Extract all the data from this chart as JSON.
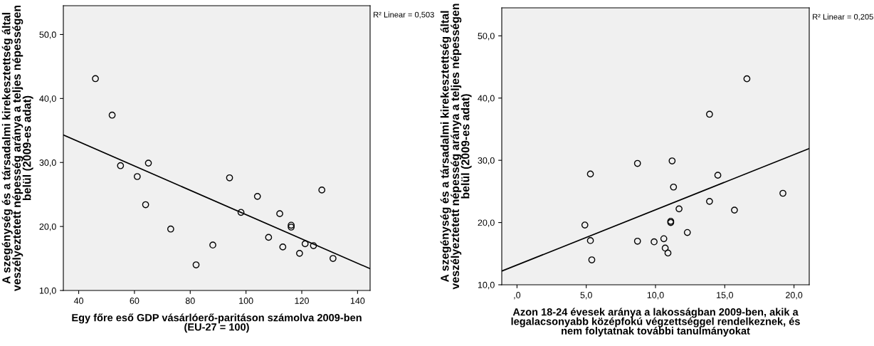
{
  "chart_data": [
    {
      "type": "scatter",
      "xlabel": "Egy főre eső GDP vásárlóerő-paritáson számolva 2009-ben\n(EU-27 = 100)",
      "ylabel": "A szegénység és a társadalmi kirekesztettség által\nveszélyeztetett népesség aránya a teljes népességen\nbelül (2009-es adat)",
      "annotations": [
        "R² Linear = 0,503"
      ],
      "xlim": [
        34.5,
        144.5
      ],
      "xticks": [
        40,
        60,
        80,
        100,
        120,
        140
      ],
      "ylim": [
        10,
        54.5
      ],
      "yticks": [
        {
          "value": 10,
          "label": "10,0"
        },
        {
          "value": 20,
          "label": "20,0"
        },
        {
          "value": 30,
          "label": "30,0"
        },
        {
          "value": 40,
          "label": "40,0"
        },
        {
          "value": 50,
          "label": "50,0"
        }
      ],
      "grid": false,
      "legend": false,
      "series": [
        {
          "marker": "circle",
          "color": "#000000",
          "x": [
            46.0,
            52.0,
            55.0,
            65.0,
            61.0,
            64.0,
            73.0,
            82.1,
            88.1,
            94.1,
            98.2,
            104.1,
            108.1,
            112.1,
            113.2,
            116.2,
            116.2,
            119.2,
            121.2,
            124.2,
            127.2,
            131.2
          ],
          "values": [
            43.1,
            37.4,
            29.5,
            29.9,
            27.8,
            23.4,
            19.6,
            14.0,
            17.1,
            27.6,
            22.2,
            24.7,
            18.3,
            22.0,
            16.8,
            20.2,
            19.9,
            15.8,
            17.3,
            17.0,
            25.7,
            15.0
          ]
        },
        {
          "type": "line",
          "marker": "none",
          "line_style": "solid",
          "color": "#000000",
          "x": [
            34.5,
            144.5
          ],
          "values": [
            34.3,
            13.4
          ]
        }
      ]
    },
    {
      "type": "scatter",
      "xlabel": "Azon 18-24 évesek aránya a lakosságban 2009-ben, akik a\nlegalacsonyabb középfokú végzettséggel rendelkeznek, és\nnem folytatnak további tanulmányokat",
      "ylabel": "A szegénység és a társadalmi kirekesztettség által\nveszélyeztetett népesség aránya a teljes népességen\nbelül (2009-es adat)",
      "annotations": [
        "R² Linear = 0,205"
      ],
      "xlim": [
        -1.1,
        21.1
      ],
      "xticks": [
        {
          "value": 0,
          "label": ",0"
        },
        {
          "value": 5,
          "label": "5,0"
        },
        {
          "value": 10,
          "label": "10,0"
        },
        {
          "value": 15,
          "label": "15,0"
        },
        {
          "value": 20,
          "label": "20,0"
        }
      ],
      "ylim": [
        10,
        54.5
      ],
      "yticks": [
        {
          "value": 10,
          "label": "10,0"
        },
        {
          "value": 20,
          "label": "20,0"
        },
        {
          "value": 30,
          "label": "30,0"
        },
        {
          "value": 40,
          "label": "40,0"
        },
        {
          "value": 50,
          "label": "50,0"
        }
      ],
      "grid": false,
      "legend": false,
      "series": [
        {
          "marker": "circle",
          "color": "#000000",
          "x": [
            16.6,
            13.9,
            8.7,
            11.2,
            5.3,
            14.5,
            11.3,
            19.2,
            13.9,
            11.7,
            15.7,
            4.9,
            11.1,
            11.1,
            12.3,
            5.3,
            8.7,
            9.9,
            10.6,
            10.7,
            10.9,
            5.4
          ],
          "values": [
            43.1,
            37.4,
            29.5,
            29.9,
            27.8,
            27.6,
            25.7,
            24.7,
            23.4,
            22.2,
            22.0,
            19.6,
            20.2,
            20.0,
            18.4,
            17.1,
            17.0,
            16.9,
            17.4,
            15.9,
            15.1,
            14.0
          ]
        },
        {
          "type": "line",
          "marker": "none",
          "line_style": "solid",
          "color": "#000000",
          "x": [
            -1.1,
            21.1
          ],
          "values": [
            12.2,
            31.9
          ]
        }
      ]
    }
  ]
}
